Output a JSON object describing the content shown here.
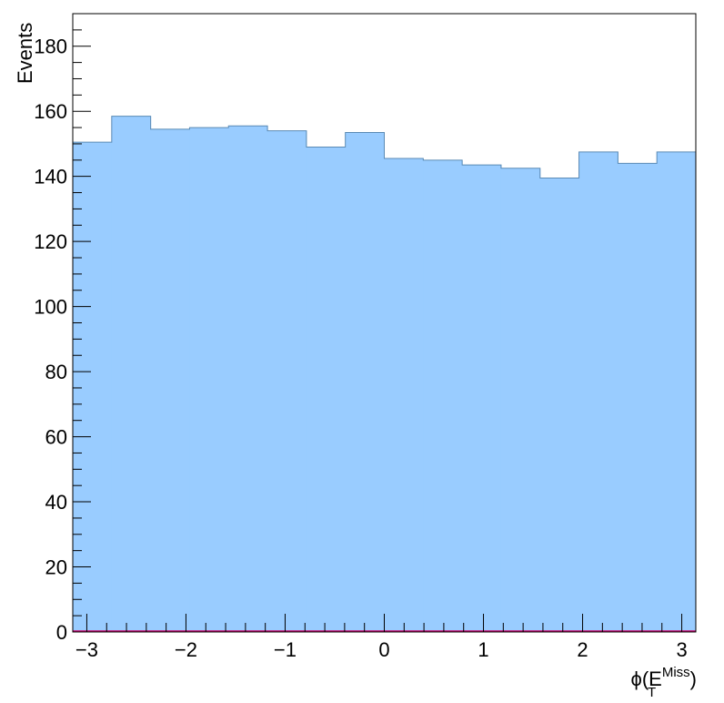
{
  "chart_data": {
    "type": "bar",
    "ylabel": "Events",
    "xlabel": {
      "prefix": "ϕ(E",
      "subscript": "T",
      "superscript": "Miss",
      "suffix": ")"
    },
    "xlim": [
      -3.1416,
      3.1416
    ],
    "ylim": [
      0,
      190
    ],
    "x_ticks": [
      -3,
      -2,
      -1,
      0,
      1,
      2,
      3
    ],
    "x_tick_labels": [
      "−3",
      "−2",
      "−1",
      "0",
      "1",
      "2",
      "3"
    ],
    "y_ticks": [
      0,
      20,
      40,
      60,
      80,
      100,
      120,
      140,
      160,
      180
    ],
    "y_tick_labels": [
      "0",
      "20",
      "40",
      "60",
      "80",
      "100",
      "120",
      "140",
      "160",
      "180"
    ],
    "bin_edges": [
      -3.1416,
      -2.7489,
      -2.3562,
      -1.9635,
      -1.5708,
      -1.1781,
      -0.7854,
      -0.3927,
      0.0,
      0.3927,
      0.7854,
      1.1781,
      1.5708,
      1.9635,
      2.3562,
      2.7489,
      3.1416
    ],
    "series": [
      {
        "values": [
          150.5,
          158.5,
          154.5,
          155.0,
          155.5,
          154.0,
          149.0,
          153.5,
          145.5,
          145.0,
          143.5,
          142.5,
          139.5,
          147.5,
          144.0,
          147.5
        ]
      }
    ],
    "fill_color": "#99ccff",
    "line_color": "#5a8ab5",
    "baseline_color": "#cc0066",
    "grid": false,
    "legend": "none"
  }
}
